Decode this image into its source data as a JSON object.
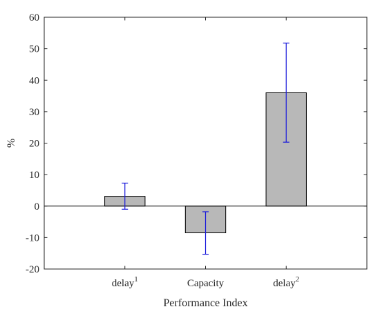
{
  "chart_data": {
    "type": "bar",
    "categories": [
      {
        "base": "delay",
        "sup": "1"
      },
      {
        "base": "Capacity",
        "sup": ""
      },
      {
        "base": "delay",
        "sup": "2"
      }
    ],
    "values": [
      3.1,
      -8.5,
      36.0
    ],
    "error_low": [
      -1.0,
      -15.3,
      20.3
    ],
    "error_high": [
      7.3,
      -1.8,
      51.8
    ],
    "xlabel": "Performance Index",
    "ylabel": "%",
    "ylim": [
      -20,
      60
    ],
    "xlim": [
      0,
      4
    ],
    "yticks": [
      -20,
      -10,
      0,
      10,
      20,
      30,
      40,
      50,
      60
    ],
    "colors": {
      "bar_fill": "#b8b8b8",
      "bar_edge": "#000000",
      "errorbar": "#1a1adb",
      "axis": "#262626",
      "zero_line": "#000000"
    },
    "grid": false,
    "legend": "none"
  }
}
